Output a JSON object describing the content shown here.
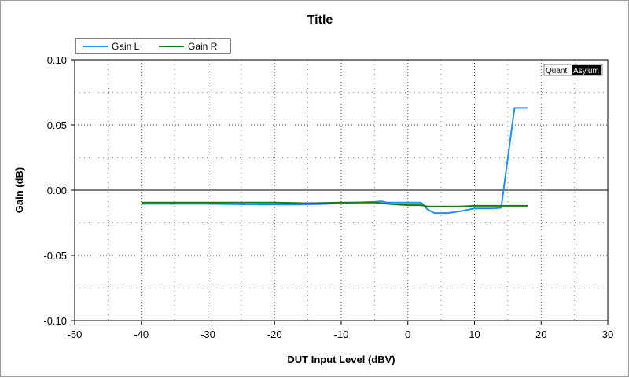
{
  "chart_data": {
    "type": "line",
    "title": "Title",
    "xlabel": "DUT Input Level (dBV)",
    "ylabel": "Gain (dB)",
    "xlim": [
      -50,
      30
    ],
    "ylim": [
      -0.1,
      0.1
    ],
    "x_ticks": [
      "-50",
      "-40",
      "-30",
      "-20",
      "-10",
      "0",
      "10",
      "20",
      "30"
    ],
    "y_ticks": [
      "0.10",
      "0.05",
      "0.00",
      "-0.05",
      "-0.10"
    ],
    "grid": true,
    "legend_position": "top-left",
    "brand": {
      "part1": "Quant",
      "part2": "Asylum"
    },
    "series": [
      {
        "name": "Gain L",
        "color": "#1e90ff",
        "points": [
          [
            -40,
            -0.0105
          ],
          [
            -30,
            -0.0105
          ],
          [
            -22,
            -0.011
          ],
          [
            -16,
            -0.011
          ],
          [
            -12,
            -0.0105
          ],
          [
            -8,
            -0.0095
          ],
          [
            -5,
            -0.009
          ],
          [
            -4,
            -0.0085
          ],
          [
            -3,
            -0.0095
          ],
          [
            0,
            -0.0095
          ],
          [
            2,
            -0.0095
          ],
          [
            3,
            -0.015
          ],
          [
            4,
            -0.0175
          ],
          [
            6,
            -0.0175
          ],
          [
            8,
            -0.016
          ],
          [
            10,
            -0.014
          ],
          [
            13,
            -0.014
          ],
          [
            14,
            -0.0135
          ],
          [
            16,
            0.063
          ],
          [
            18,
            0.063
          ]
        ]
      },
      {
        "name": "Gain R",
        "color": "#1a7a1a",
        "points": [
          [
            -40,
            -0.0095
          ],
          [
            -30,
            -0.0095
          ],
          [
            -20,
            -0.0095
          ],
          [
            -15,
            -0.01
          ],
          [
            -10,
            -0.0095
          ],
          [
            -5,
            -0.0095
          ],
          [
            -3,
            -0.0105
          ],
          [
            0,
            -0.0115
          ],
          [
            2,
            -0.0115
          ],
          [
            3,
            -0.0125
          ],
          [
            6,
            -0.0125
          ],
          [
            8,
            -0.0125
          ],
          [
            10,
            -0.012
          ],
          [
            14,
            -0.012
          ],
          [
            18,
            -0.012
          ]
        ]
      }
    ]
  }
}
